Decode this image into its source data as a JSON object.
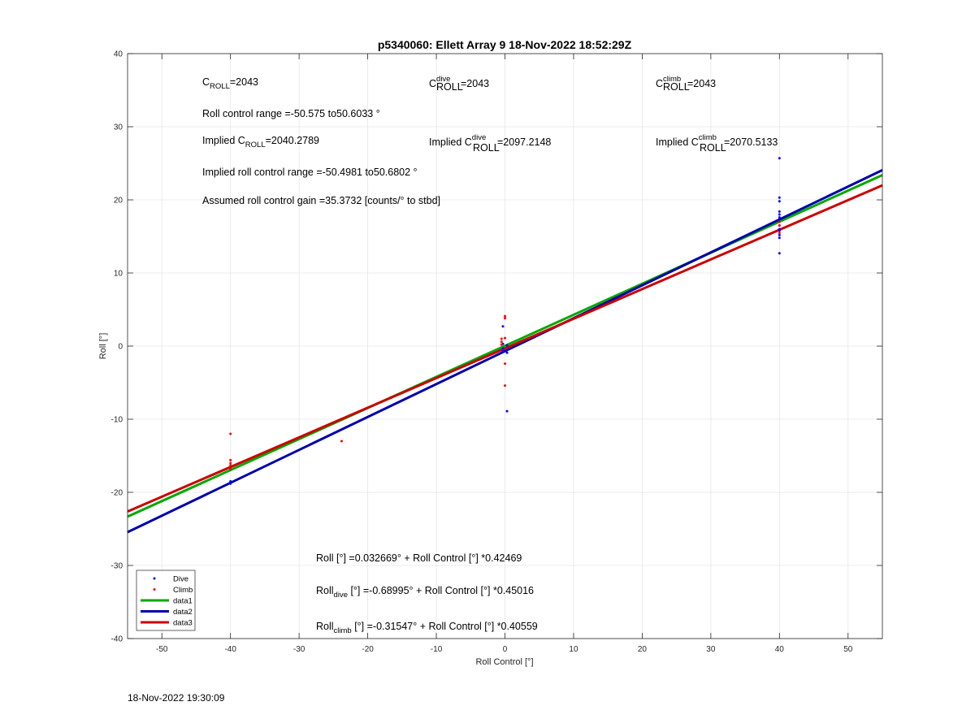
{
  "chart_data": {
    "type": "scatter",
    "title": "p5340060: Ellett Array 9 18-Nov-2022 18:52:29Z",
    "xlabel": "Roll Control [°]",
    "ylabel": "Roll [°]",
    "xlim": [
      -55,
      55
    ],
    "ylim": [
      -40,
      40
    ],
    "xticks": [
      -50,
      -40,
      -30,
      -20,
      -10,
      0,
      10,
      20,
      30,
      40,
      50
    ],
    "yticks": [
      -40,
      -30,
      -20,
      -10,
      0,
      10,
      20,
      30,
      40
    ],
    "grid": true,
    "legend_position": "bottom-left",
    "series": [
      {
        "name": "Dive",
        "kind": "points",
        "color": "#0000ff",
        "x": [
          -40,
          -40,
          -0.3,
          -0.3,
          -0.3,
          -0.3,
          0.3,
          0.3,
          0.3,
          40,
          40,
          40,
          40,
          40,
          40,
          40,
          40,
          40,
          40,
          40,
          40
        ],
        "y": [
          -18.5,
          -18.8,
          2.7,
          0.3,
          -0.3,
          -0.7,
          -0.9,
          -8.9,
          0.1,
          25.7,
          20.3,
          19.8,
          18.4,
          18.0,
          17.6,
          16.5,
          16.0,
          15.8,
          15.2,
          14.8,
          12.7
        ]
      },
      {
        "name": "Climb",
        "kind": "points",
        "color": "#ff0000",
        "x": [
          -40,
          -40,
          -40,
          -40,
          -40,
          -23.8,
          -0.5,
          -0.5,
          -0.5,
          0,
          0,
          0,
          0,
          0,
          40,
          40,
          40
        ],
        "y": [
          -12.0,
          -15.6,
          -16.0,
          -16.3,
          -16.8,
          -13.0,
          1.0,
          0.6,
          0.2,
          4.1,
          3.8,
          1.1,
          -2.4,
          -5.4,
          17.0,
          16.5,
          15.5
        ]
      },
      {
        "name": "data1",
        "kind": "line",
        "color": "#00aa00",
        "intercept": 0.032669,
        "slope": 0.42469
      },
      {
        "name": "data2",
        "kind": "line",
        "color": "#0000aa",
        "intercept": -0.68995,
        "slope": 0.45016
      },
      {
        "name": "data3",
        "kind": "line",
        "color": "#cc0000",
        "intercept": -0.31547,
        "slope": 0.40559
      }
    ]
  },
  "annotations": {
    "c_roll_value": "=2043",
    "c_dive_value": "=2043",
    "c_climb_value": "=2043",
    "roll_range": "Roll control range =-50.575 to50.6033 °",
    "implied_c_roll_value": "=2040.2789",
    "implied_c_dive_value": "=2097.2148",
    "implied_c_climb_value": "=2070.5133",
    "implied_range": "Implied roll control range =-50.4981 to50.6802 °",
    "gain": "Assumed roll control gain =35.3732 [counts/° to stbd]",
    "fit_all": "Roll [°] =0.032669° + Roll Control [°] *0.42469",
    "fit_dive": " [°] =-0.68995° + Roll Control [°] *0.45016",
    "fit_climb": " [°] =-0.31547° + Roll Control [°] *0.40559",
    "c_symbol": "C",
    "roll_sub": "ROLL",
    "dive_sup": "dive",
    "climb_sup": "climb",
    "implied_prefix": "Implied C",
    "roll_word": "Roll",
    "dive_sub": "dive",
    "climb_sub": "climb"
  },
  "footer": {
    "timestamp": "18-Nov-2022 19:30:09"
  }
}
